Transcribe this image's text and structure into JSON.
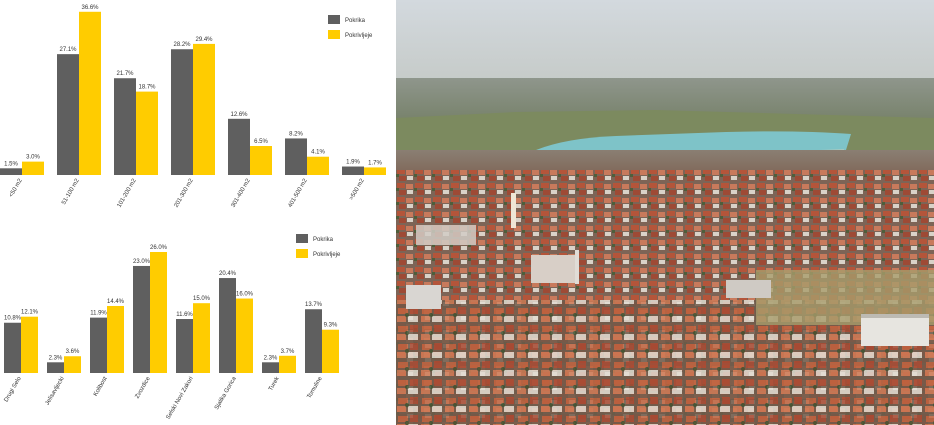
{
  "colors": {
    "series1": "#5f5f5f",
    "series2": "#ffcc00",
    "text": "#333333"
  },
  "chart_data": [
    {
      "type": "bar",
      "categories": [
        "<50 m2",
        "51-100 m2",
        "101-200 m2",
        "201-300 m2",
        "301-400 m2",
        "401-500 m2",
        ">500 m2"
      ],
      "series": [
        {
          "name": "Pokrika",
          "values": [
            1.5,
            27.1,
            21.7,
            28.2,
            12.6,
            8.2,
            1.9
          ]
        },
        {
          "name": "Pokrivljeje",
          "values": [
            3.0,
            36.6,
            18.7,
            29.4,
            6.5,
            4.1,
            1.7
          ]
        }
      ],
      "value_labels": [
        [
          "1.5%",
          "27.1%",
          "21.7%",
          "28.2%",
          "12.6%",
          "8.2%",
          "1.9%"
        ],
        [
          "3.0%",
          "36.6%",
          "18.7%",
          "29.4%",
          "6.5%",
          "4.1%",
          "1.7%"
        ]
      ],
      "ylim": [
        0,
        37
      ],
      "grid": false,
      "legend": "top-right"
    },
    {
      "type": "bar",
      "categories": [
        "Drugi Selo",
        "Jelisavljecki",
        "Kolibost",
        "Zvozdice",
        "Selski Novi Zakori",
        "Sjalika Gorica",
        "Turek",
        "Tomuline"
      ],
      "series": [
        {
          "name": "Pokrika",
          "values": [
            10.8,
            2.3,
            11.9,
            23.0,
            11.6,
            20.4,
            2.3,
            13.7
          ]
        },
        {
          "name": "Pokrivljeje",
          "values": [
            12.1,
            3.6,
            14.4,
            26.0,
            15.0,
            16.0,
            3.7,
            9.3
          ]
        }
      ],
      "value_labels": [
        [
          "10.8%",
          "2.3%",
          "11.9%",
          "23.0%",
          "11.6%",
          "20.4%",
          "2.3%",
          "13.7%"
        ],
        [
          "12.1%",
          "3.6%",
          "14.4%",
          "26.0%",
          "15.0%",
          "16.0%",
          "3.7%",
          "9.3%"
        ]
      ],
      "ylim": [
        0,
        26
      ],
      "grid": false,
      "legend": "top-right"
    }
  ]
}
